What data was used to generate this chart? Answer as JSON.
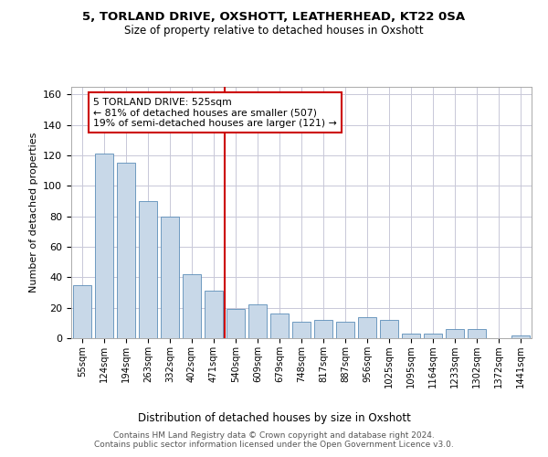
{
  "title_line1": "5, TORLAND DRIVE, OXSHOTT, LEATHERHEAD, KT22 0SA",
  "title_line2": "Size of property relative to detached houses in Oxshott",
  "xlabel": "Distribution of detached houses by size in Oxshott",
  "ylabel": "Number of detached properties",
  "categories": [
    "55sqm",
    "124sqm",
    "194sqm",
    "263sqm",
    "332sqm",
    "402sqm",
    "471sqm",
    "540sqm",
    "609sqm",
    "679sqm",
    "748sqm",
    "817sqm",
    "887sqm",
    "956sqm",
    "1025sqm",
    "1095sqm",
    "1164sqm",
    "1233sqm",
    "1302sqm",
    "1372sqm",
    "1441sqm"
  ],
  "values": [
    35,
    121,
    115,
    90,
    80,
    42,
    31,
    19,
    22,
    16,
    11,
    12,
    11,
    14,
    12,
    3,
    3,
    6,
    6,
    0,
    2
  ],
  "bar_color": "#c8d8e8",
  "bar_edge_color": "#5b8db8",
  "vline_color": "#cc0000",
  "annotation_text": "5 TORLAND DRIVE: 525sqm\n← 81% of detached houses are smaller (507)\n19% of semi-detached houses are larger (121) →",
  "annotation_box_color": "#ffffff",
  "annotation_box_edge": "#cc0000",
  "ylim": [
    0,
    165
  ],
  "yticks": [
    0,
    20,
    40,
    60,
    80,
    100,
    120,
    140,
    160
  ],
  "footer_text": "Contains HM Land Registry data © Crown copyright and database right 2024.\nContains public sector information licensed under the Open Government Licence v3.0.",
  "background_color": "#ffffff",
  "grid_color": "#c8c8d8"
}
